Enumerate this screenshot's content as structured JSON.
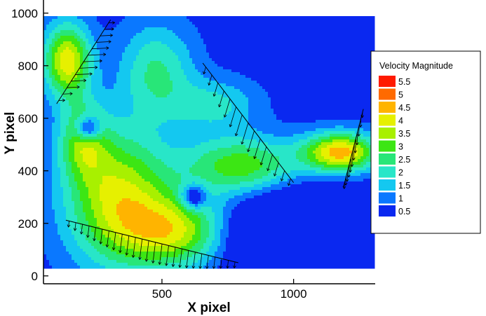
{
  "chart_data": {
    "type": "contour",
    "title": "",
    "xlabel": "X pixel",
    "ylabel": "Y pixel",
    "xlim": [
      50,
      1310
    ],
    "ylim": [
      -30,
      1050
    ],
    "xticks": [
      500,
      1000
    ],
    "yticks": [
      0,
      200,
      400,
      600,
      800,
      1000
    ],
    "grid": false,
    "legend": {
      "title": "Velocity Magnitude",
      "placement": "right",
      "levels": [
        {
          "label": "5.5",
          "value": 5.5,
          "color": "#ff1a00"
        },
        {
          "label": "5",
          "value": 5.0,
          "color": "#ff6a00"
        },
        {
          "label": "4.5",
          "value": 4.5,
          "color": "#ffb400"
        },
        {
          "label": "4",
          "value": 4.0,
          "color": "#e6f000"
        },
        {
          "label": "3.5",
          "value": 3.5,
          "color": "#a8f000"
        },
        {
          "label": "3",
          "value": 3.0,
          "color": "#3ce614"
        },
        {
          "label": "2.5",
          "value": 2.5,
          "color": "#28e678"
        },
        {
          "label": "2",
          "value": 2.0,
          "color": "#28e6c8"
        },
        {
          "label": "1.5",
          "value": 1.5,
          "color": "#14c8f0"
        },
        {
          "label": "1",
          "value": 1.0,
          "color": "#0a78ff"
        },
        {
          "label": "0.5",
          "value": 0.5,
          "color": "#0a28f0"
        }
      ]
    },
    "field_extent": {
      "x": [
        50,
        1300
      ],
      "y": [
        30,
        990
      ]
    },
    "field_base_value": 0.5,
    "field_sources": [
      {
        "x": 140,
        "y": 820,
        "sx": 90,
        "sy": 140,
        "amp": 3.6
      },
      {
        "x": 330,
        "y": 300,
        "sx": 200,
        "sy": 260,
        "amp": 3.3
      },
      {
        "x": 560,
        "y": 170,
        "sx": 200,
        "sy": 140,
        "amp": 3.0
      },
      {
        "x": 200,
        "y": 520,
        "sx": 90,
        "sy": 140,
        "amp": 2.2
      },
      {
        "x": 800,
        "y": 420,
        "sx": 220,
        "sy": 110,
        "amp": 2.6
      },
      {
        "x": 1180,
        "y": 470,
        "sx": 140,
        "sy": 75,
        "amp": 4.0
      },
      {
        "x": 480,
        "y": 780,
        "sx": 140,
        "sy": 180,
        "amp": 1.8
      },
      {
        "x": 700,
        "y": 650,
        "sx": 160,
        "sy": 100,
        "amp": 1.4
      },
      {
        "x": 220,
        "y": 560,
        "sx": 45,
        "sy": 45,
        "amp": -2.6
      },
      {
        "x": 620,
        "y": 300,
        "sx": 45,
        "sy": 45,
        "amp": -2.2
      },
      {
        "x": 1020,
        "y": 150,
        "sx": 260,
        "sy": 150,
        "amp": -3.0
      }
    ],
    "velocity_profiles": [
      {
        "name": "upper-left",
        "start": [
          100,
          655
        ],
        "end": [
          305,
          975
        ],
        "count": 13,
        "dir": [
          1,
          0.05
        ],
        "max_length": 70
      },
      {
        "name": "center",
        "start": [
          655,
          810
        ],
        "end": [
          1000,
          355
        ],
        "count": 15,
        "dir": [
          -0.3,
          -1
        ],
        "max_length": 85
      },
      {
        "name": "right",
        "start": [
          1190,
          340
        ],
        "end": [
          1265,
          635
        ],
        "count": 12,
        "dir": [
          -0.05,
          -1
        ],
        "max_length": 60
      },
      {
        "name": "bottom",
        "start": [
          135,
          212
        ],
        "end": [
          790,
          50
        ],
        "count": 26,
        "dir": [
          -0.12,
          -1
        ],
        "max_length": 80
      }
    ]
  }
}
